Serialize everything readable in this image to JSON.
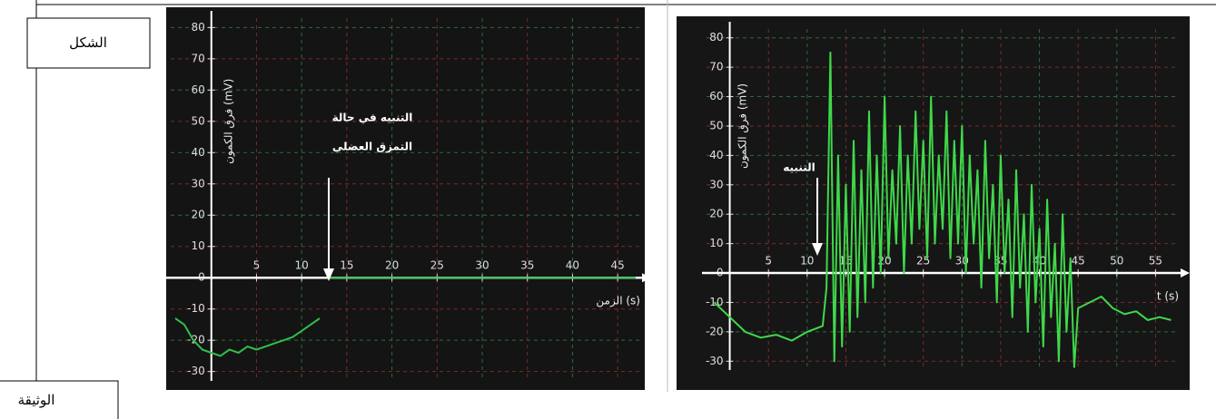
{
  "labels": {
    "figure": "الشكل",
    "document": "الوثيقة"
  },
  "chart_data": [
    {
      "type": "line",
      "ylabel": "فرق الكمون (mV)",
      "xlabel": "الزمن (s)",
      "annotation": [
        "التنبيه في حالة",
        "التمزق العضلي"
      ],
      "xlim": [
        -4.5,
        47.5
      ],
      "xticks": [
        5,
        10,
        15,
        20,
        25,
        30,
        35,
        40,
        45
      ],
      "ylim": [
        -33,
        83
      ],
      "yticks": [
        80,
        70,
        60,
        50,
        40,
        30,
        20,
        10,
        0,
        -10,
        -20,
        -30
      ],
      "grid": true,
      "series": [
        {
          "color": "#2fbf4a",
          "x": [
            -4,
            -3,
            -2,
            -1,
            0,
            1,
            2,
            3,
            4,
            5,
            6,
            7,
            8,
            9,
            10,
            11,
            12,
            12.5,
            13,
            47
          ],
          "values": [
            -13,
            -15,
            -20,
            -23,
            -24,
            -25,
            -23,
            -24,
            -22,
            -23,
            -22,
            -21,
            -20,
            -19,
            -17,
            -15,
            -13,
            null,
            0,
            0
          ]
        }
      ]
    },
    {
      "type": "line",
      "ylabel": "فرق الكمون (mV)",
      "xlabel": "t (s)",
      "annotation": [
        "التنبيه"
      ],
      "xlim": [
        -3,
        58
      ],
      "xticks": [
        5,
        10,
        15,
        20,
        25,
        30,
        35,
        40,
        45,
        50,
        55
      ],
      "ylim": [
        -33,
        83
      ],
      "yticks": [
        80,
        70,
        60,
        50,
        40,
        30,
        20,
        10,
        0,
        -10,
        -20,
        -30
      ],
      "grid": true,
      "series": [
        {
          "color": "#3fd84a",
          "x": [
            -2,
            0,
            2,
            4,
            6,
            8,
            10,
            12,
            12.5,
            13,
            13.5,
            14,
            14.5,
            15,
            15.5,
            16,
            16.5,
            17,
            17.5,
            18,
            18.5,
            19,
            19.5,
            20,
            20.5,
            21,
            21.5,
            22,
            22.5,
            23,
            23.5,
            24,
            24.5,
            25,
            25.5,
            26,
            26.5,
            27,
            27.5,
            28,
            28.5,
            29,
            29.5,
            30,
            30.5,
            31,
            31.5,
            32,
            32.5,
            33,
            33.5,
            34,
            34.5,
            35,
            35.5,
            36,
            36.5,
            37,
            37.5,
            38,
            38.5,
            39,
            39.5,
            40,
            40.5,
            41,
            41.5,
            42,
            42.5,
            43,
            43.5,
            44,
            44.5,
            45,
            46.5,
            48,
            49.5,
            51,
            52.5,
            54,
            55.5,
            57
          ],
          "values": [
            -10,
            -15,
            -20,
            -22,
            -21,
            -23,
            -20,
            -18,
            -5,
            75,
            -30,
            40,
            -25,
            30,
            -20,
            45,
            -15,
            35,
            -10,
            55,
            -5,
            40,
            0,
            60,
            5,
            35,
            10,
            50,
            0,
            40,
            10,
            55,
            15,
            45,
            5,
            60,
            10,
            40,
            15,
            55,
            5,
            45,
            10,
            50,
            0,
            40,
            10,
            35,
            -5,
            45,
            5,
            30,
            -10,
            40,
            0,
            25,
            -15,
            35,
            -5,
            20,
            -20,
            30,
            -10,
            15,
            -25,
            25,
            -15,
            10,
            -30,
            20,
            -20,
            5,
            -32,
            -12,
            -10,
            -8,
            -12,
            -14,
            -13,
            -16,
            -15,
            -16
          ]
        }
      ]
    }
  ]
}
